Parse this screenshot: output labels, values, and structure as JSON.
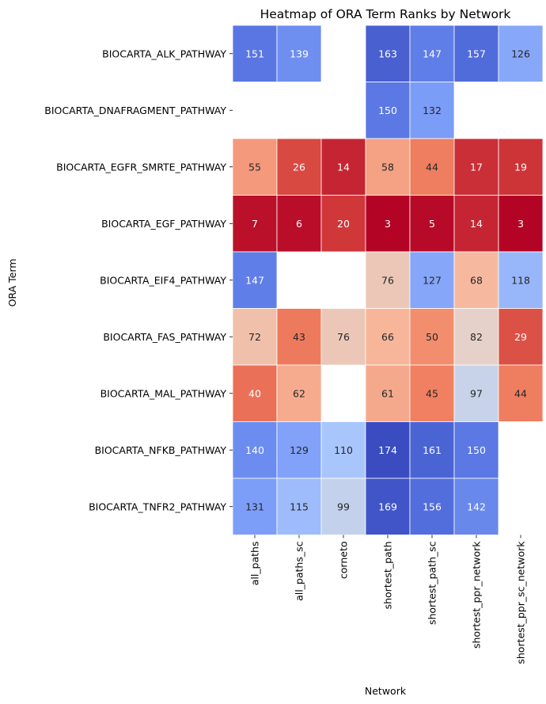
{
  "chart_data": {
    "type": "heatmap",
    "title": "Heatmap of ORA Term Ranks by Network",
    "xlabel": "Network",
    "ylabel": "ORA Term",
    "colormap": "coolwarm_r",
    "vmin": 3,
    "vmax": 174,
    "annotations": true,
    "grid": false,
    "x": [
      "all_paths",
      "all_paths_sc",
      "corneto",
      "shortest_path",
      "shortest_path_sc",
      "shortest_ppr_network",
      "shortest_ppr_sc_network"
    ],
    "y": [
      "BIOCARTA_ALK_PATHWAY",
      "BIOCARTA_DNAFRAGMENT_PATHWAY",
      "BIOCARTA_EGFR_SMRTE_PATHWAY",
      "BIOCARTA_EGF_PATHWAY",
      "BIOCARTA_EIF4_PATHWAY",
      "BIOCARTA_FAS_PATHWAY",
      "BIOCARTA_MAL_PATHWAY",
      "BIOCARTA_NFKB_PATHWAY",
      "BIOCARTA_TNFR2_PATHWAY"
    ],
    "values": [
      [
        151,
        139,
        null,
        163,
        147,
        157,
        126
      ],
      [
        null,
        null,
        null,
        150,
        132,
        null,
        null
      ],
      [
        55,
        26,
        14,
        58,
        44,
        17,
        19
      ],
      [
        7,
        6,
        20,
        3,
        5,
        14,
        3
      ],
      [
        147,
        null,
        null,
        76,
        127,
        68,
        118
      ],
      [
        72,
        43,
        76,
        66,
        50,
        82,
        29
      ],
      [
        40,
        62,
        null,
        61,
        45,
        97,
        44
      ],
      [
        140,
        129,
        110,
        174,
        161,
        150,
        null
      ],
      [
        131,
        115,
        99,
        169,
        156,
        142,
        null
      ]
    ]
  }
}
